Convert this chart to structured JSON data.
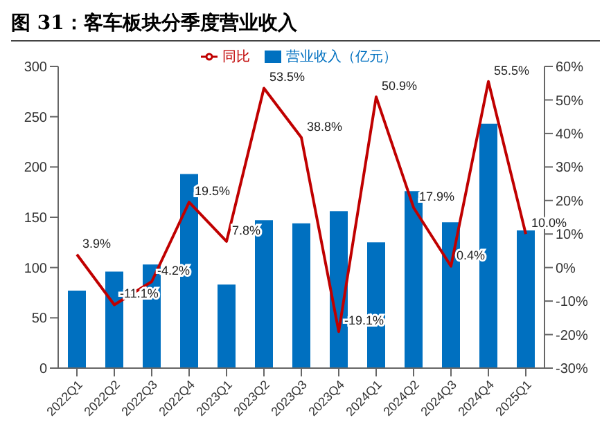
{
  "chart_data": {
    "type": "bar",
    "title": "图 31：客车板块分季度营业收入",
    "categories": [
      "2022Q1",
      "2022Q2",
      "2022Q3",
      "2022Q4",
      "2023Q1",
      "2023Q2",
      "2023Q3",
      "2023Q4",
      "2024Q1",
      "2024Q2",
      "2024Q3",
      "2024Q4",
      "2025Q1"
    ],
    "series": [
      {
        "name": "营业收入（亿元）",
        "color": "#0070c0",
        "values": [
          77,
          96,
          103,
          193,
          83,
          147,
          144,
          156,
          125,
          176,
          145,
          243,
          137
        ]
      },
      {
        "name": "同比",
        "type": "line",
        "axis": "y2",
        "color": "#c00000",
        "values": [
          3.9,
          -11.1,
          -4.2,
          19.5,
          7.8,
          53.5,
          38.8,
          -19.1,
          50.9,
          17.9,
          0.4,
          55.5,
          10.0
        ],
        "value_labels": [
          "3.9%",
          "-11.1%",
          "-4.2%",
          "19.5%",
          "7.8%",
          "53.5%",
          "38.8%",
          "-19.1%",
          "50.9%",
          "17.9%",
          "0.4%",
          "55.5%",
          "10.0%"
        ]
      }
    ],
    "ylim": [
      0,
      300
    ],
    "yticks": [
      0,
      50,
      100,
      150,
      200,
      250,
      300
    ],
    "y2lim": [
      -30,
      60
    ],
    "y2ticks": [
      {
        "value": -30,
        "label": "-30%"
      },
      {
        "value": -20,
        "label": "-20%"
      },
      {
        "value": -10,
        "label": "-10%"
      },
      {
        "value": 0,
        "label": "0%"
      },
      {
        "value": 10,
        "label": "10%"
      },
      {
        "value": 20,
        "label": "20%"
      },
      {
        "value": 30,
        "label": "30%"
      },
      {
        "value": 40,
        "label": "40%"
      },
      {
        "value": 50,
        "label": "50%"
      },
      {
        "value": 60,
        "label": "60%"
      }
    ],
    "grid": false,
    "legend": "top",
    "marker": "none"
  }
}
